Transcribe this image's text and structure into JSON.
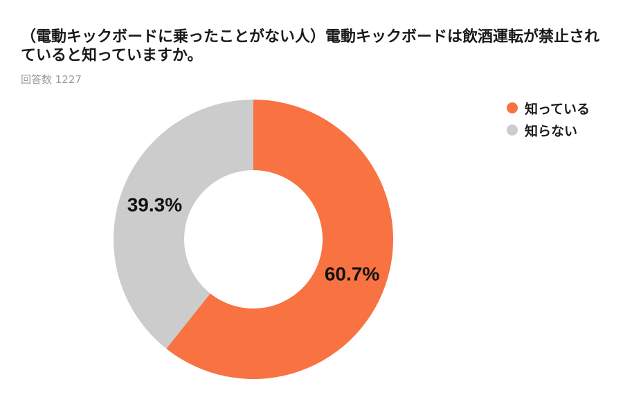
{
  "chart_data": {
    "type": "pie",
    "title": "（電動キックボードに乗ったことがない人）電動キックボードは飲酒運転が禁止されていると知っていますか。",
    "subtitle": "回答数 1227",
    "legend_position": "top-right",
    "donut": true,
    "categories": [
      "知っている",
      "知らない"
    ],
    "values": [
      60.7,
      39.3
    ],
    "labels": [
      "60.7%",
      "39.3%"
    ],
    "colors": [
      "#f87242",
      "#cccccc"
    ]
  }
}
